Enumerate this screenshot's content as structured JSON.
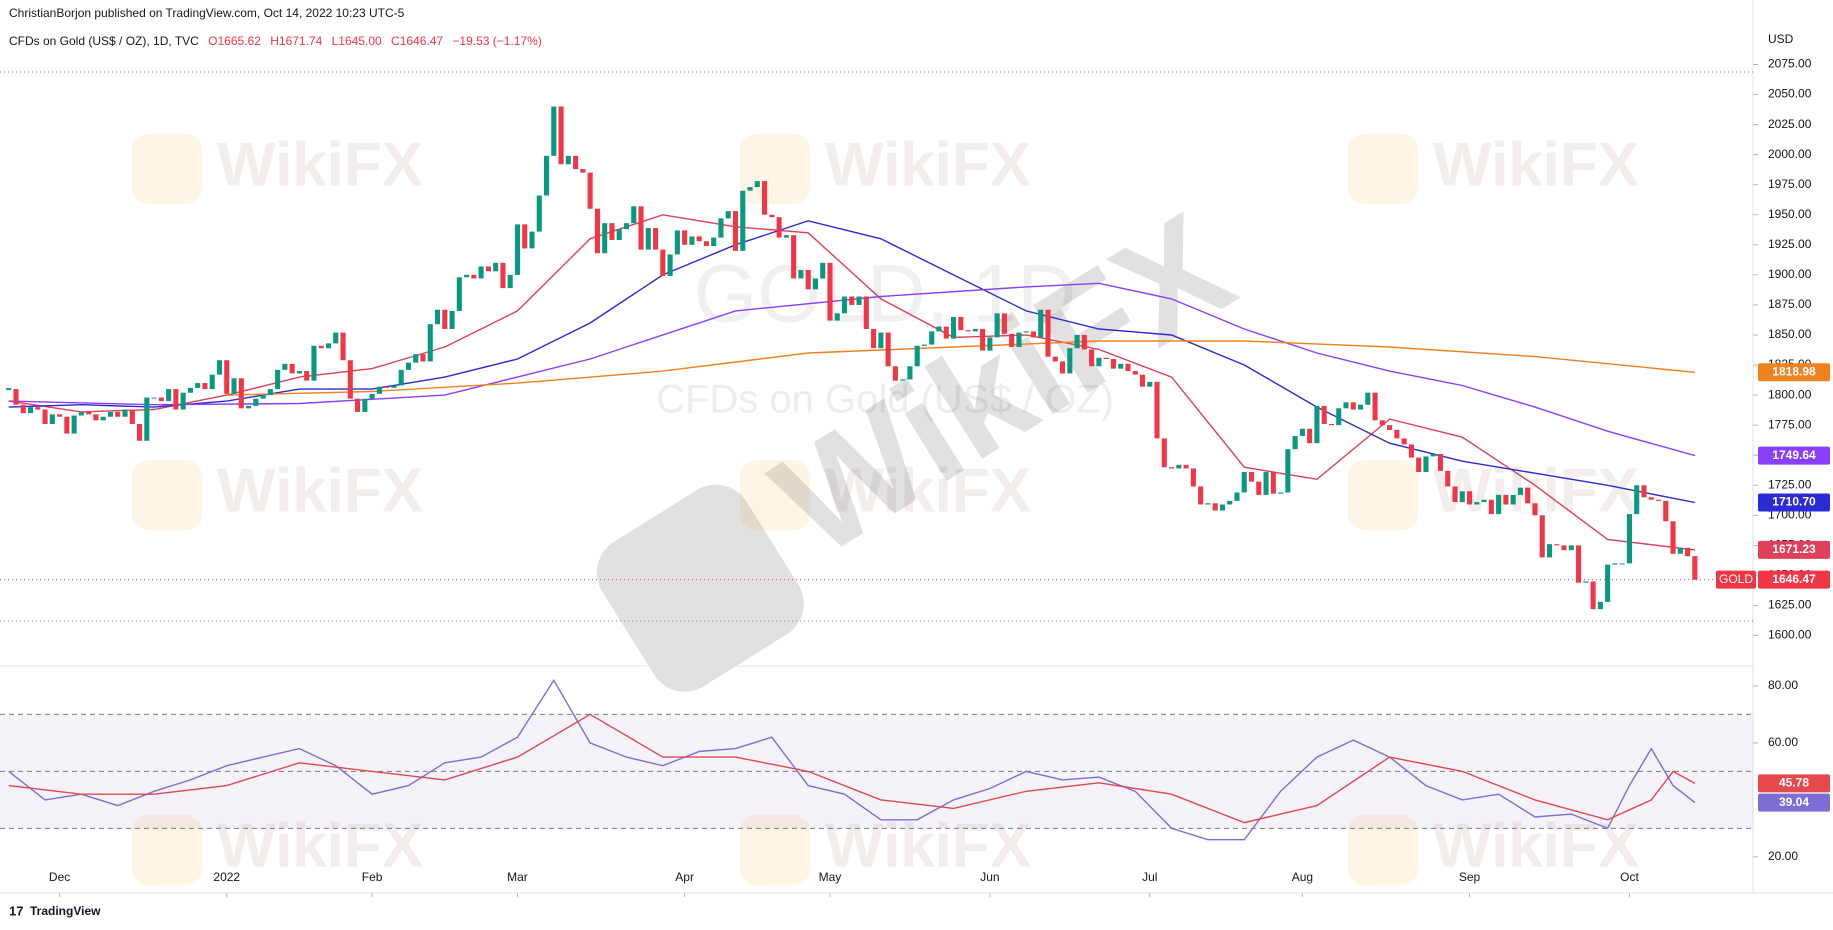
{
  "header": {
    "publisher": "ChristianBorjon published on TradingView.com, Oct 14, 2022 10:23 UTC-5",
    "symbol": "CFDs on Gold (US$ / OZ), 1D, TVC",
    "ohlc": [
      "O1665.62",
      "H1671.74",
      "L1645.00",
      "C1646.47",
      "−19.53 (−1.17%)"
    ]
  },
  "footer": {
    "logo": "TradingView"
  },
  "watermark": {
    "brand": "WikiFX",
    "symbol": "GOLD, 1D",
    "name": "CFDs on Gold (US$ / OZ)"
  },
  "chart_data": [
    {
      "type": "candlestick",
      "y_unit": "USD",
      "ticker": "GOLD",
      "up_color": "#089981",
      "down_color": "#f23645",
      "xlim": [
        -1.2,
        240
      ],
      "xticks": [
        {
          "value": 7,
          "label": "Dec"
        },
        {
          "value": 30,
          "label": "2022"
        },
        {
          "value": 50,
          "label": "Feb"
        },
        {
          "value": 70,
          "label": "Mar"
        },
        {
          "value": 93,
          "label": "Apr"
        },
        {
          "value": 113,
          "label": "May"
        },
        {
          "value": 135,
          "label": "Jun"
        },
        {
          "value": 157,
          "label": "Jul"
        },
        {
          "value": 178,
          "label": "Aug"
        },
        {
          "value": 201,
          "label": "Sep"
        },
        {
          "value": 223,
          "label": "Oct"
        }
      ],
      "ylim": [
        1578,
        2107
      ],
      "yticks": [
        {
          "value": 1600,
          "label": "1600.00"
        },
        {
          "value": 1625,
          "label": "1625.00"
        },
        {
          "value": 1650,
          "label": "1650.00"
        },
        {
          "value": 1675,
          "label": "1675.00"
        },
        {
          "value": 1700,
          "label": "1700.00"
        },
        {
          "value": 1725,
          "label": "1725.00"
        },
        {
          "value": 1750,
          "label": "1750.00"
        },
        {
          "value": 1775,
          "label": "1775.00"
        },
        {
          "value": 1800,
          "label": "1800.00"
        },
        {
          "value": 1825,
          "label": "1825.00"
        },
        {
          "value": 1850,
          "label": "1850.00"
        },
        {
          "value": 1875,
          "label": "1875.00"
        },
        {
          "value": 1900,
          "label": "1900.00"
        },
        {
          "value": 1925,
          "label": "1925.00"
        },
        {
          "value": 1950,
          "label": "1950.00"
        },
        {
          "value": 1975,
          "label": "1975.00"
        },
        {
          "value": 2000,
          "label": "2000.00"
        },
        {
          "value": 2025,
          "label": "2025.00"
        },
        {
          "value": 2050,
          "label": "2050.00"
        },
        {
          "value": 2075,
          "label": "2075.00"
        }
      ],
      "close": [
        1805,
        1792,
        1785,
        1790,
        1788,
        1776,
        1784,
        1782,
        1768,
        1783,
        1786,
        1784,
        1779,
        1782,
        1786,
        1782,
        1788,
        1776,
        1762,
        1798,
        1798,
        1795,
        1805,
        1788,
        1802,
        1806,
        1810,
        1805,
        1817,
        1829,
        1801,
        1814,
        1789,
        1791,
        1797,
        1800,
        1805,
        1821,
        1826,
        1818,
        1820,
        1812,
        1841,
        1839,
        1843,
        1852,
        1829,
        1797,
        1786,
        1797,
        1801,
        1807,
        1806,
        1808,
        1821,
        1827,
        1834,
        1828,
        1859,
        1871,
        1855,
        1870,
        1898,
        1900,
        1897,
        1907,
        1903,
        1910,
        1889,
        1900,
        1942,
        1922,
        1936,
        1966,
        1999,
        2040,
        1992,
        1999,
        1988,
        1985,
        1955,
        1918,
        1943,
        1929,
        1938,
        1943,
        1957,
        1921,
        1939,
        1921,
        1899,
        1917,
        1937,
        1925,
        1932,
        1928,
        1924,
        1931,
        1947,
        1953,
        1920,
        1970,
        1973,
        1978,
        1950,
        1948,
        1931,
        1933,
        1897,
        1904,
        1888,
        1897,
        1910,
        1862,
        1868,
        1882,
        1875,
        1882,
        1855,
        1839,
        1852,
        1824,
        1812,
        1813,
        1824,
        1841,
        1842,
        1853,
        1857,
        1847,
        1865,
        1854,
        1853,
        1855,
        1837,
        1848,
        1868,
        1851,
        1840,
        1852,
        1853,
        1848,
        1871,
        1832,
        1828,
        1818,
        1839,
        1850,
        1838,
        1824,
        1831,
        1830,
        1822,
        1826,
        1820,
        1817,
        1807,
        1811,
        1764,
        1740,
        1739,
        1742,
        1739,
        1724,
        1709,
        1710,
        1704,
        1709,
        1712,
        1719,
        1736,
        1728,
        1717,
        1736,
        1718,
        1719,
        1755,
        1766,
        1772,
        1760,
        1791,
        1776,
        1775,
        1789,
        1794,
        1788,
        1792,
        1802,
        1779,
        1775,
        1771,
        1764,
        1759,
        1748,
        1736,
        1749,
        1751,
        1737,
        1724,
        1711,
        1720,
        1709,
        1711,
        1713,
        1701,
        1717,
        1709,
        1717,
        1723,
        1710,
        1700,
        1665,
        1676,
        1675,
        1671,
        1675,
        1644,
        1645,
        1622,
        1628,
        1659,
        1660,
        1660,
        1701,
        1725,
        1715,
        1713,
        1712,
        1695,
        1668,
        1673,
        1666,
        1646.47
      ],
      "series": [
        {
          "color": "#e0405a",
          "x": [
            0,
            10,
            20,
            30,
            40,
            50,
            60,
            70,
            80,
            90,
            100,
            110,
            120,
            130,
            140,
            150,
            160,
            170,
            180,
            190,
            200,
            210,
            220,
            232
          ],
          "values": [
            1795,
            1786,
            1788,
            1800,
            1815,
            1822,
            1840,
            1870,
            1930,
            1950,
            1940,
            1935,
            1880,
            1848,
            1850,
            1838,
            1815,
            1740,
            1730,
            1780,
            1765,
            1725,
            1680,
            1671.23
          ]
        },
        {
          "color": "#2b2bd6",
          "x": [
            0,
            10,
            20,
            30,
            40,
            50,
            60,
            70,
            80,
            90,
            100,
            110,
            120,
            130,
            140,
            150,
            160,
            170,
            180,
            190,
            200,
            210,
            220,
            232
          ],
          "values": [
            1790,
            1792,
            1790,
            1795,
            1805,
            1805,
            1815,
            1830,
            1860,
            1900,
            1925,
            1945,
            1930,
            1900,
            1870,
            1855,
            1850,
            1825,
            1790,
            1760,
            1745,
            1735,
            1725,
            1710.7
          ],
          "value_labels": [
            null,
            null,
            null,
            null,
            null,
            null,
            null,
            null,
            null,
            null,
            null,
            null,
            null,
            null,
            null,
            null,
            null,
            null,
            null,
            null,
            null,
            null,
            null,
            "1710.70"
          ]
        },
        {
          "color": "#8a3ffc",
          "x": [
            0,
            20,
            40,
            60,
            80,
            100,
            120,
            140,
            150,
            160,
            170,
            180,
            190,
            200,
            210,
            220,
            232
          ],
          "values": [
            1795,
            1792,
            1793,
            1800,
            1830,
            1870,
            1882,
            1890,
            1893,
            1880,
            1855,
            1835,
            1820,
            1808,
            1790,
            1770,
            1749.64
          ]
        },
        {
          "color": "#f0821e",
          "x": [
            30,
            50,
            70,
            90,
            110,
            130,
            150,
            170,
            190,
            210,
            232
          ],
          "values": [
            1800,
            1803,
            1810,
            1820,
            1835,
            1840,
            1845,
            1845,
            1840,
            1832,
            1818.98
          ]
        }
      ]
    },
    {
      "type": "line",
      "xlim": [
        -1.2,
        240
      ],
      "ylim": [
        8,
        85.6
      ],
      "yticks": [
        {
          "value": 20,
          "label": "20.00"
        },
        {
          "value": 60,
          "label": "60.00"
        },
        {
          "value": 80,
          "label": "80.00"
        }
      ],
      "levels": [
        30,
        50,
        70
      ],
      "series": [
        {
          "color": "#7b6fd6",
          "x": [
            0,
            5,
            10,
            15,
            20,
            25,
            30,
            35,
            40,
            45,
            50,
            55,
            60,
            65,
            70,
            75,
            80,
            85,
            90,
            95,
            100,
            105,
            110,
            115,
            120,
            125,
            130,
            135,
            140,
            145,
            150,
            155,
            160,
            165,
            170,
            175,
            180,
            185,
            190,
            195,
            200,
            205,
            210,
            215,
            220,
            223,
            226,
            229,
            232
          ],
          "values": [
            50,
            40,
            42,
            38,
            43,
            47,
            52,
            55,
            58,
            52,
            42,
            45,
            53,
            55,
            62,
            82,
            60,
            55,
            52,
            57,
            58,
            62,
            45,
            42,
            33,
            33,
            40,
            44,
            50,
            47,
            48,
            43,
            30,
            26,
            26,
            43,
            55,
            61,
            55,
            45,
            40,
            42,
            34,
            35,
            30,
            45,
            58,
            45,
            39.04
          ]
        },
        {
          "color": "#e5484d",
          "x": [
            0,
            10,
            20,
            30,
            40,
            50,
            60,
            70,
            80,
            90,
            100,
            110,
            120,
            130,
            140,
            150,
            160,
            170,
            180,
            190,
            200,
            210,
            220,
            226,
            229,
            232
          ],
          "values": [
            45,
            42,
            42,
            45,
            53,
            50,
            47,
            55,
            70,
            55,
            55,
            50,
            40,
            37,
            43,
            46,
            42,
            32,
            38,
            55,
            50,
            40,
            33,
            40,
            50,
            45.78
          ]
        }
      ]
    }
  ]
}
